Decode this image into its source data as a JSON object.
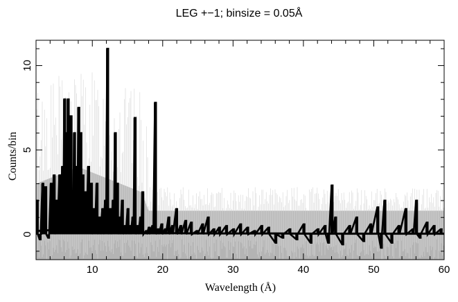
{
  "chart_data": {
    "type": "line",
    "title": "LEG +−1; binsize = 0.05Å",
    "xlabel": "Wavelength (Å)",
    "ylabel": "Counts/bin",
    "xlim": [
      2,
      60
    ],
    "ylim": [
      -1.5,
      11.5
    ],
    "xticks": [
      10,
      20,
      30,
      40,
      50,
      60
    ],
    "xtick_labels": [
      "10",
      "20",
      "30",
      "40",
      "50",
      "60"
    ],
    "yticks": [
      0,
      5,
      10
    ],
    "ytick_labels": [
      "0",
      "5",
      "10"
    ],
    "grid": false,
    "legend": "none",
    "series": [
      {
        "role": "data-counts",
        "style": "black-heavy-step",
        "color": "#000000",
        "x": [
          2.1,
          2.5,
          2.9,
          3.3,
          3.7,
          4.1,
          4.5,
          4.9,
          5.3,
          5.7,
          6.0,
          6.3,
          6.5,
          6.7,
          6.9,
          7.1,
          7.4,
          7.7,
          8.0,
          8.3,
          8.6,
          9.0,
          9.4,
          9.8,
          10.2,
          10.6,
          11.0,
          11.4,
          11.8,
          12.1,
          12.5,
          12.9,
          13.2,
          13.5,
          13.8,
          14.2,
          14.6,
          15.0,
          15.3,
          15.7,
          16.0,
          16.4,
          16.8,
          17.1,
          17.6,
          18.0,
          18.5,
          18.9,
          19.3,
          19.8,
          20.3,
          20.8,
          21.3,
          21.9,
          22.5,
          23.2,
          24.0,
          24.8,
          25.6,
          26.4,
          27.2,
          28.0,
          29.0,
          30.0,
          31.0,
          32.0,
          33.0,
          34.0,
          35.0,
          36.0,
          37.0,
          38.0,
          39.0,
          40.0,
          41.0,
          42.0,
          43.0,
          43.5,
          44.0,
          44.5,
          45.5,
          46.5,
          47.5,
          48.5,
          49.5,
          50.5,
          51.0,
          51.5,
          52.5,
          53.5,
          54.5,
          55.5,
          56.0,
          56.5,
          57.5,
          58.5,
          59.5
        ],
        "values": [
          2.0,
          -0.3,
          3.0,
          2.8,
          -0.2,
          3.0,
          3.5,
          2.0,
          3.5,
          4.0,
          8.0,
          6.0,
          8.0,
          3.5,
          7.0,
          1.5,
          6.0,
          4.0,
          7.5,
          6.0,
          3.5,
          2.5,
          4.0,
          3.0,
          1.5,
          3.0,
          1.0,
          1.5,
          2.0,
          11.0,
          1.5,
          2.0,
          6.0,
          3.0,
          1.0,
          2.0,
          0.5,
          1.5,
          0.5,
          1.0,
          6.9,
          0.5,
          1.0,
          2.5,
          0.2,
          0.4,
          0.5,
          7.8,
          0.3,
          0.6,
          0.3,
          1.0,
          0.5,
          1.5,
          0.5,
          0.8,
          0.7,
          0.2,
          0.6,
          1.0,
          0.3,
          0.4,
          0.5,
          0.3,
          0.6,
          0.4,
          0.2,
          0.5,
          0.4,
          -0.5,
          -0.2,
          0.3,
          -0.3,
          0.6,
          -0.5,
          0.3,
          0.5,
          -0.5,
          2.9,
          1.0,
          -0.6,
          0.5,
          1.0,
          -0.4,
          0.6,
          1.6,
          -0.8,
          2.0,
          -0.5,
          0.5,
          1.5,
          0.3,
          2.0,
          -0.2,
          0.7,
          0.5,
          0.3
        ]
      },
      {
        "role": "background-model",
        "style": "black-flat",
        "color": "#000000",
        "x": [
          2,
          8,
          12,
          14,
          18,
          24,
          30,
          36,
          42,
          48,
          54,
          60
        ],
        "values": [
          0.2,
          0.35,
          0.15,
          0.1,
          0.08,
          0.06,
          0.05,
          0.05,
          0.04,
          0.04,
          0.04,
          0.04
        ]
      },
      {
        "role": "error-band",
        "style": "gray-fill",
        "color": "#b4b4b4",
        "x": [
          2,
          5,
          8,
          11,
          14,
          17,
          18,
          20,
          25,
          30,
          35,
          40,
          45,
          50,
          55,
          60
        ],
        "lower": [
          -1.5,
          -1.5,
          -1.5,
          -1.5,
          -1.5,
          -1.5,
          -1.5,
          -1.5,
          -1.5,
          -1.5,
          -1.5,
          -1.5,
          -1.5,
          -1.5,
          -1.5,
          -1.5
        ],
        "upper": [
          3.0,
          3.5,
          4.0,
          3.5,
          3.0,
          2.5,
          1.4,
          1.4,
          1.4,
          1.4,
          1.4,
          1.4,
          1.4,
          1.4,
          1.4,
          1.4
        ]
      }
    ]
  }
}
